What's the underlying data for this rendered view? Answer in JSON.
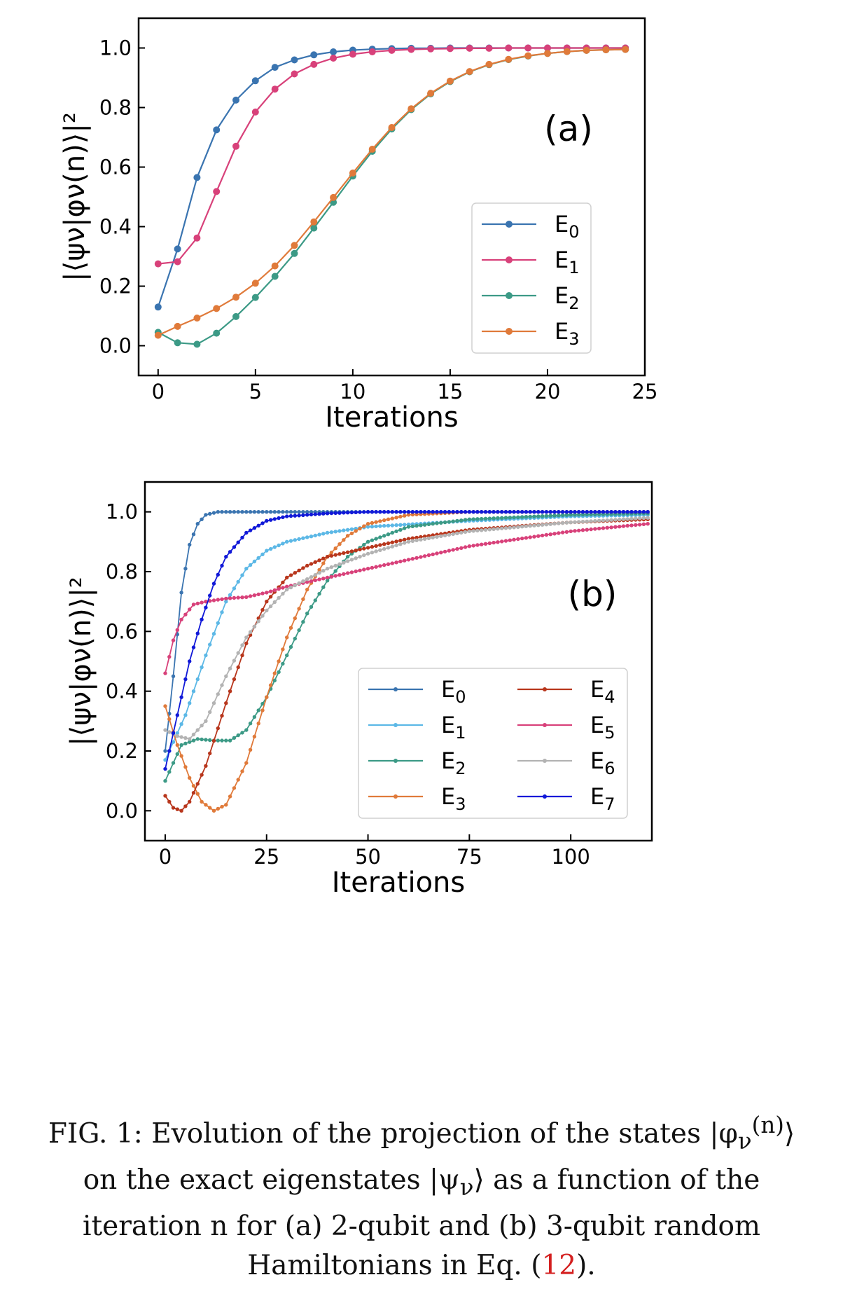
{
  "caption": {
    "line1": "FIG. 1: Evolution of the projection of the states |φ",
    "line1_sub": "ν",
    "line1_sup": "(n)",
    "line1_end": "⟩",
    "line2": "on the exact eigenstates |ψ",
    "line2_sub": "ν",
    "line2_end": "⟩ as a function of the",
    "line3": "iteration n for (a) 2-qubit and (b) 3-qubit random",
    "line4_pre": "Hamiltonians in Eq. (",
    "line4_ref": "12",
    "line4_post": ")."
  },
  "chart_data": [
    {
      "type": "line",
      "panel_label": "(a)",
      "xlabel": "Iterations",
      "ylabel": "|⟨ψν|φν(n)⟩|²",
      "xlim": [
        -1,
        25
      ],
      "ylim": [
        -0.1,
        1.1
      ],
      "xticks": [
        "0",
        "5",
        "10",
        "15",
        "20",
        "25"
      ],
      "yticks": [
        "0.0",
        "0.2",
        "0.4",
        "0.6",
        "0.8",
        "1.0"
      ],
      "legend_position": "bottom-right",
      "x": [
        0,
        1,
        2,
        3,
        4,
        5,
        6,
        7,
        8,
        9,
        10,
        11,
        12,
        13,
        14,
        15,
        16,
        17,
        18,
        19,
        20,
        21,
        22,
        23,
        24
      ],
      "series": [
        {
          "name": "E0",
          "color": "#3a74b0",
          "values": [
            0.13,
            0.325,
            0.565,
            0.725,
            0.825,
            0.89,
            0.935,
            0.96,
            0.977,
            0.987,
            0.993,
            0.996,
            0.998,
            0.999,
            0.999,
            1.0,
            1.0,
            1.0,
            1.0,
            1.0,
            1.0,
            1.0,
            1.0,
            1.0,
            1.0
          ]
        },
        {
          "name": "E1",
          "color": "#d8417a",
          "values": [
            0.275,
            0.282,
            0.362,
            0.518,
            0.67,
            0.785,
            0.862,
            0.913,
            0.945,
            0.966,
            0.979,
            0.987,
            0.992,
            0.995,
            0.997,
            0.998,
            0.999,
            0.999,
            1.0,
            1.0,
            1.0,
            1.0,
            1.0,
            1.0,
            1.0
          ]
        },
        {
          "name": "E2",
          "color": "#3c9a86",
          "values": [
            0.045,
            0.01,
            0.005,
            0.042,
            0.098,
            0.162,
            0.233,
            0.31,
            0.395,
            0.482,
            0.57,
            0.653,
            0.728,
            0.793,
            0.846,
            0.887,
            0.92,
            0.944,
            0.961,
            0.973,
            0.982,
            0.988,
            0.992,
            0.994,
            0.995
          ]
        },
        {
          "name": "E3",
          "color": "#e07a3a",
          "values": [
            0.035,
            0.065,
            0.093,
            0.125,
            0.163,
            0.21,
            0.268,
            0.337,
            0.416,
            0.498,
            0.58,
            0.66,
            0.733,
            0.796,
            0.848,
            0.889,
            0.921,
            0.945,
            0.962,
            0.974,
            0.982,
            0.988,
            0.992,
            0.994,
            0.995
          ]
        }
      ]
    },
    {
      "type": "line",
      "panel_label": "(b)",
      "xlabel": "Iterations",
      "ylabel": "|⟨ψν|φν(n)⟩|²",
      "xlim": [
        -5,
        120
      ],
      "ylim": [
        -0.1,
        1.1
      ],
      "xticks": [
        "0",
        "25",
        "50",
        "75",
        "100"
      ],
      "yticks": [
        "0.0",
        "0.2",
        "0.4",
        "0.6",
        "0.8",
        "1.0"
      ],
      "legend_position": "bottom-right",
      "legend_columns": 2,
      "x_range": [
        0,
        119
      ],
      "series": [
        {
          "name": "E0",
          "color": "#3a74b0",
          "points": [
            [
              0,
              0.2
            ],
            [
              2,
              0.45
            ],
            [
              4,
              0.73
            ],
            [
              6,
              0.89
            ],
            [
              8,
              0.96
            ],
            [
              10,
              0.99
            ],
            [
              13,
              1.0
            ],
            [
              20,
              1.0
            ],
            [
              119,
              1.0
            ]
          ]
        },
        {
          "name": "E1",
          "color": "#5cb8e6",
          "points": [
            [
              0,
              0.17
            ],
            [
              5,
              0.32
            ],
            [
              10,
              0.52
            ],
            [
              15,
              0.7
            ],
            [
              20,
              0.81
            ],
            [
              25,
              0.87
            ],
            [
              30,
              0.9
            ],
            [
              40,
              0.93
            ],
            [
              50,
              0.95
            ],
            [
              75,
              0.97
            ],
            [
              100,
              0.985
            ],
            [
              119,
              0.99
            ]
          ]
        },
        {
          "name": "E2",
          "color": "#3c9a86",
          "points": [
            [
              0,
              0.1
            ],
            [
              4,
              0.22
            ],
            [
              8,
              0.24
            ],
            [
              12,
              0.235
            ],
            [
              16,
              0.235
            ],
            [
              20,
              0.27
            ],
            [
              25,
              0.38
            ],
            [
              30,
              0.52
            ],
            [
              35,
              0.66
            ],
            [
              40,
              0.77
            ],
            [
              45,
              0.85
            ],
            [
              50,
              0.9
            ],
            [
              60,
              0.95
            ],
            [
              75,
              0.975
            ],
            [
              100,
              0.99
            ],
            [
              119,
              0.995
            ]
          ]
        },
        {
          "name": "E3",
          "color": "#e07a3a",
          "points": [
            [
              0,
              0.35
            ],
            [
              3,
              0.22
            ],
            [
              6,
              0.11
            ],
            [
              9,
              0.03
            ],
            [
              12,
              0.0
            ],
            [
              15,
              0.02
            ],
            [
              20,
              0.16
            ],
            [
              25,
              0.38
            ],
            [
              30,
              0.58
            ],
            [
              35,
              0.74
            ],
            [
              40,
              0.85
            ],
            [
              45,
              0.92
            ],
            [
              50,
              0.96
            ],
            [
              60,
              0.99
            ],
            [
              75,
              1.0
            ],
            [
              119,
              1.0
            ]
          ]
        },
        {
          "name": "E4",
          "color": "#b8361c",
          "points": [
            [
              0,
              0.05
            ],
            [
              2,
              0.01
            ],
            [
              4,
              0.0
            ],
            [
              6,
              0.03
            ],
            [
              10,
              0.15
            ],
            [
              15,
              0.36
            ],
            [
              20,
              0.56
            ],
            [
              25,
              0.7
            ],
            [
              30,
              0.78
            ],
            [
              35,
              0.82
            ],
            [
              40,
              0.85
            ],
            [
              50,
              0.88
            ],
            [
              60,
              0.91
            ],
            [
              75,
              0.94
            ],
            [
              100,
              0.965
            ],
            [
              119,
              0.975
            ]
          ]
        },
        {
          "name": "E5",
          "color": "#d8417a",
          "points": [
            [
              0,
              0.46
            ],
            [
              2,
              0.57
            ],
            [
              4,
              0.64
            ],
            [
              7,
              0.69
            ],
            [
              10,
              0.7
            ],
            [
              15,
              0.71
            ],
            [
              20,
              0.715
            ],
            [
              25,
              0.73
            ],
            [
              30,
              0.75
            ],
            [
              40,
              0.78
            ],
            [
              50,
              0.81
            ],
            [
              60,
              0.84
            ],
            [
              75,
              0.885
            ],
            [
              100,
              0.935
            ],
            [
              119,
              0.96
            ]
          ]
        },
        {
          "name": "E6",
          "color": "#b3b3b3",
          "points": [
            [
              0,
              0.27
            ],
            [
              3,
              0.25
            ],
            [
              6,
              0.24
            ],
            [
              10,
              0.3
            ],
            [
              15,
              0.45
            ],
            [
              20,
              0.58
            ],
            [
              25,
              0.67
            ],
            [
              30,
              0.74
            ],
            [
              40,
              0.81
            ],
            [
              50,
              0.86
            ],
            [
              60,
              0.9
            ],
            [
              75,
              0.935
            ],
            [
              100,
              0.965
            ],
            [
              119,
              0.98
            ]
          ]
        },
        {
          "name": "E7",
          "color": "#1018d8",
          "points": [
            [
              0,
              0.14
            ],
            [
              3,
              0.32
            ],
            [
              6,
              0.5
            ],
            [
              9,
              0.64
            ],
            [
              12,
              0.76
            ],
            [
              15,
              0.85
            ],
            [
              20,
              0.93
            ],
            [
              25,
              0.97
            ],
            [
              30,
              0.985
            ],
            [
              40,
              0.995
            ],
            [
              50,
              1.0
            ],
            [
              119,
              1.0
            ]
          ]
        }
      ]
    }
  ]
}
